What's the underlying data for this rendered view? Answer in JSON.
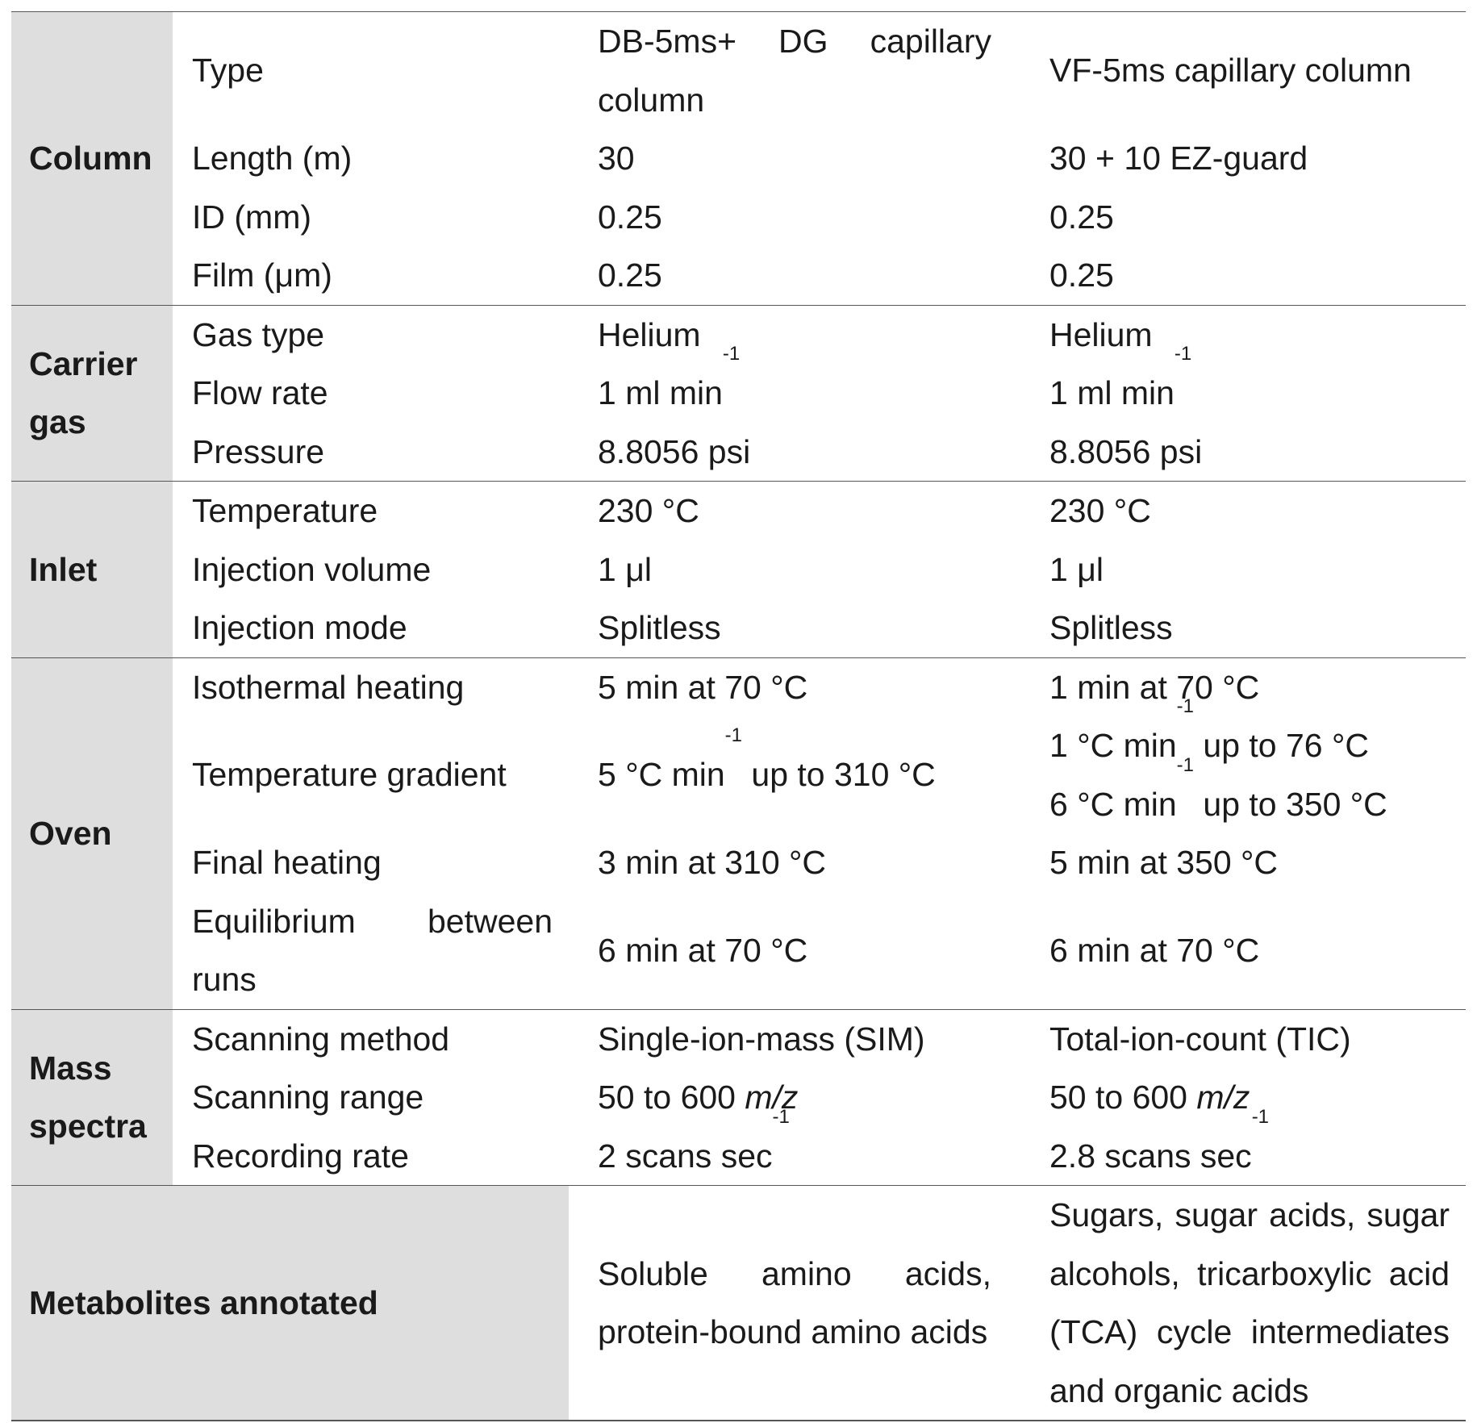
{
  "sections": {
    "column": "Column",
    "carrier_gas_1": "Carrier",
    "carrier_gas_2": "gas",
    "inlet": "Inlet",
    "oven": "Oven",
    "mass_1": "Mass",
    "mass_2": "spectra",
    "metabolites": "Metabolites annotated"
  },
  "rows": {
    "type": {
      "param": "Type",
      "v1a": "DB-5ms+ DG capillary",
      "v1b": "column",
      "v2": "VF-5ms capillary column"
    },
    "length": {
      "param": "Length (m)",
      "v1": "30",
      "v2": "30 + 10 EZ-guard"
    },
    "id": {
      "param": "ID (mm)",
      "v1": "0.25",
      "v2": "0.25"
    },
    "film": {
      "param": "Film (μm)",
      "v1": "0.25",
      "v2": "0.25"
    },
    "gas_type": {
      "param": "Gas type",
      "v1": "Helium",
      "v2": "Helium"
    },
    "flow_rate": {
      "param": "Flow rate",
      "v1": "1 ml min",
      "v1_sup": "-1",
      "v2": "1 ml min",
      "v2_sup": "-1"
    },
    "pressure": {
      "param": "Pressure",
      "v1": "8.8056 psi",
      "v2": "8.8056 psi"
    },
    "temperature": {
      "param": "Temperature",
      "v1": "230 °C",
      "v2": "230 °C"
    },
    "inj_volume": {
      "param": "Injection volume",
      "v1": "1 μl",
      "v2": "1 μl"
    },
    "inj_mode": {
      "param": "Injection mode",
      "v1": "Splitless",
      "v2": "Splitless"
    },
    "isothermal": {
      "param": "Isothermal heating",
      "v1": "5 min at 70 °C",
      "v2": "1 min at 70 °C"
    },
    "gradient": {
      "param": "Temperature gradient",
      "v1_pre": "5 °C min",
      "v1_sup": "-1",
      "v1_post": " up to 310 °C",
      "v2a_pre": "1 °C min",
      "v2a_sup": "-1",
      "v2a_post": " up to 76 °C",
      "v2b_pre": "6 °C min",
      "v2b_sup": "-1",
      "v2b_post": " up to 350 °C"
    },
    "final_heating": {
      "param": "Final heating",
      "v1": "3 min at 310 °C",
      "v2": "5 min at 350 °C"
    },
    "equilibrium": {
      "param_a": "Equilibrium between",
      "param_b": "runs",
      "v1": "6 min at 70 °C",
      "v2": "6 min at 70 °C"
    },
    "scan_method": {
      "param": "Scanning method",
      "v1": "Single-ion-mass (SIM)",
      "v2": "Total-ion-count (TIC)"
    },
    "scan_range": {
      "param": "Scanning range",
      "v1_pre": "50 to 600 ",
      "v1_it": "m/z",
      "v2_pre": "50 to 600 ",
      "v2_it": "m/z"
    },
    "rec_rate": {
      "param": "Recording rate",
      "v1": "2 scans sec",
      "v1_sup": "-1",
      "v2": "2.8 scans sec",
      "v2_sup": "-1"
    },
    "metabolites": {
      "v1_a": "Soluble amino acids,",
      "v1_b": "protein-bound amino acids",
      "v2_a": "Sugars, sugar acids, sugar",
      "v2_b": "alcohols, tricarboxylic acid",
      "v2_c": "(TCA) cycle intermediates",
      "v2_d": "and organic acids"
    }
  }
}
